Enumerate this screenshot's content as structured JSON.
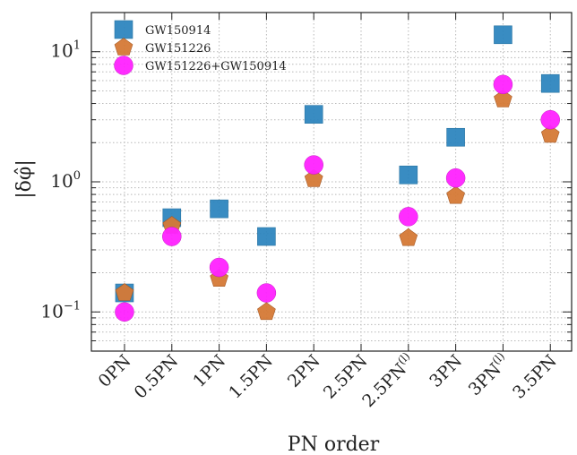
{
  "chart_data": {
    "type": "scatter",
    "title": "",
    "xlabel": "PN order",
    "ylabel": "|δφ̂|",
    "yscale": "log",
    "ylim": [
      0.05,
      20
    ],
    "grid": true,
    "legend_position": "top-left",
    "categories": [
      "0PN",
      "0.5PN",
      "1PN",
      "1.5PN",
      "2PN",
      "2.5PN",
      "2.5PN",
      "3PN",
      "3PN",
      "3.5PN"
    ],
    "category_superscripts": [
      "",
      "",
      "",
      "",
      "",
      "",
      "(l)",
      "",
      "(l)",
      ""
    ],
    "y_ticks": [
      {
        "base": "10",
        "exp": "−1",
        "value": 0.1
      },
      {
        "base": "10",
        "exp": "0",
        "value": 1
      },
      {
        "base": "10",
        "exp": "1",
        "value": 10
      }
    ],
    "series": [
      {
        "name": "GW150914",
        "marker": "square",
        "color": "#2f86bf",
        "values": [
          0.14,
          0.53,
          0.62,
          0.38,
          3.3,
          null,
          1.13,
          2.2,
          13.5,
          5.7
        ]
      },
      {
        "name": "GW151226",
        "marker": "pentagon",
        "color": "#d57a36",
        "values": [
          0.14,
          0.46,
          0.18,
          0.1,
          1.05,
          null,
          0.37,
          0.78,
          4.3,
          2.3
        ]
      },
      {
        "name": "GW151226+GW150914",
        "marker": "circle",
        "color": "#ff22ff",
        "values": [
          0.1,
          0.38,
          0.22,
          0.14,
          1.35,
          null,
          0.54,
          1.07,
          5.6,
          3.0
        ]
      }
    ]
  }
}
